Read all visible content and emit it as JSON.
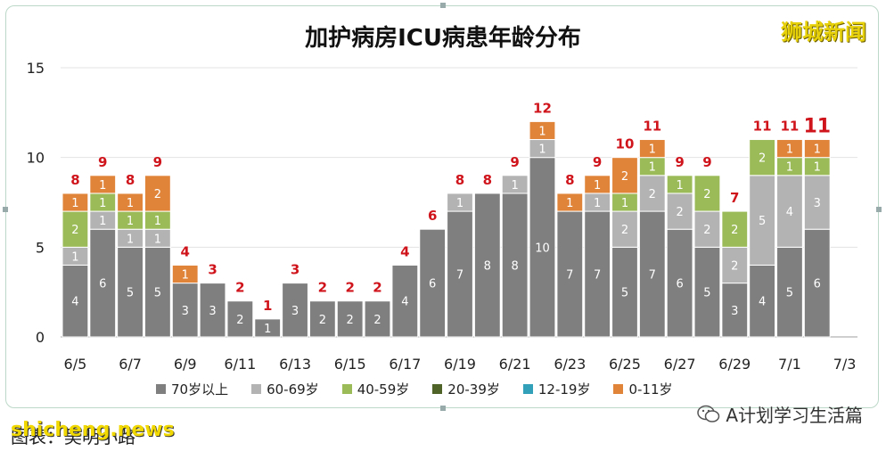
{
  "header": {
    "title": "加护病房ICU病患年龄分布",
    "brand": "狮城新闻"
  },
  "footer": {
    "caption": "图表：吴明小路",
    "site": "shicheng.news",
    "account": "A计划学习生活篇"
  },
  "chart_data": {
    "type": "bar",
    "stacked": true,
    "title": "加护病房ICU病患年龄分布",
    "ylim": [
      0,
      15
    ],
    "yticks": [
      0,
      5,
      10,
      15
    ],
    "xtick_labels": [
      "6/5",
      "6/7",
      "6/9",
      "6/11",
      "6/13",
      "6/15",
      "6/17",
      "6/19",
      "6/21",
      "6/23",
      "6/25",
      "6/27",
      "6/29",
      "7/1",
      "7/3"
    ],
    "categories": [
      "6/5",
      "6/6",
      "6/7",
      "6/8",
      "6/9",
      "6/10",
      "6/11",
      "6/12",
      "6/13",
      "6/14",
      "6/15",
      "6/16",
      "6/17",
      "6/18",
      "6/19",
      "6/20",
      "6/21",
      "6/22",
      "6/23",
      "6/24",
      "6/25",
      "6/26",
      "6/27",
      "6/28",
      "6/29",
      "6/30",
      "7/1",
      "7/2"
    ],
    "series": [
      {
        "name": "70岁以上",
        "color": "#7f7f7f",
        "values": [
          4,
          6,
          5,
          5,
          3,
          3,
          2,
          1,
          3,
          2,
          2,
          2,
          4,
          6,
          7,
          8,
          8,
          10,
          7,
          7,
          5,
          7,
          6,
          5,
          3,
          4,
          5,
          6
        ]
      },
      {
        "name": "60-69岁",
        "color": "#b3b3b3",
        "values": [
          1,
          1,
          1,
          1,
          0,
          0,
          0,
          0,
          0,
          0,
          0,
          0,
          0,
          0,
          1,
          0,
          1,
          1,
          0,
          1,
          2,
          2,
          2,
          2,
          2,
          5,
          4,
          3
        ]
      },
      {
        "name": "40-59岁",
        "color": "#9bbb59",
        "values": [
          2,
          1,
          1,
          1,
          0,
          0,
          0,
          0,
          0,
          0,
          0,
          0,
          0,
          0,
          0,
          0,
          0,
          0,
          0,
          0,
          1,
          1,
          1,
          2,
          2,
          2,
          1,
          1
        ]
      },
      {
        "name": "20-39岁",
        "color": "#4f6228",
        "values": [
          0,
          0,
          0,
          0,
          0,
          0,
          0,
          0,
          0,
          0,
          0,
          0,
          0,
          0,
          0,
          0,
          0,
          0,
          0,
          0,
          0,
          0,
          0,
          0,
          0,
          0,
          0,
          0
        ]
      },
      {
        "name": "12-19岁",
        "color": "#31a0b8",
        "values": [
          0,
          0,
          0,
          0,
          0,
          0,
          0,
          0,
          0,
          0,
          0,
          0,
          0,
          0,
          0,
          0,
          0,
          0,
          0,
          0,
          0,
          0,
          0,
          0,
          0,
          0,
          0,
          0
        ]
      },
      {
        "name": "0-11岁",
        "color": "#e0843a",
        "values": [
          1,
          1,
          1,
          2,
          1,
          0,
          0,
          0,
          0,
          0,
          0,
          0,
          0,
          0,
          0,
          0,
          0,
          1,
          1,
          1,
          2,
          1,
          0,
          0,
          0,
          0,
          1,
          1
        ]
      }
    ],
    "totals": [
      8,
      9,
      8,
      9,
      4,
      3,
      2,
      1,
      3,
      2,
      2,
      2,
      4,
      6,
      8,
      8,
      9,
      12,
      8,
      9,
      10,
      11,
      9,
      9,
      7,
      11,
      11,
      11
    ],
    "highlight_last_total": true,
    "legend_position": "bottom",
    "grid": true
  }
}
